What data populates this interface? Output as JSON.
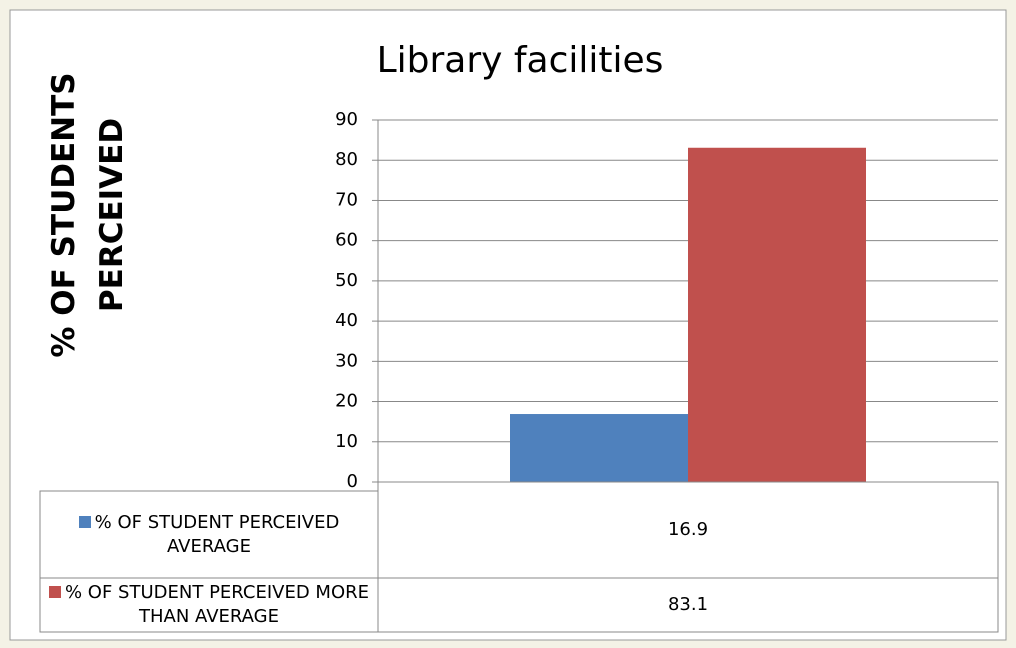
{
  "chart_data": {
    "type": "bar",
    "title": "Library facilities",
    "ylabel": "% OF STUDENTS PERCEIVED",
    "categories": [
      null
    ],
    "series": [
      {
        "name": "% OF STUDENT PERCEIVED AVERAGE",
        "color": "#4f81bd",
        "values": [
          16.9
        ]
      },
      {
        "name": "% OF STUDENT PERCEIVED MORE THAN AVERAGE",
        "color": "#c0504d",
        "values": [
          83.1
        ]
      }
    ],
    "ylim": [
      0,
      90
    ],
    "yticks": [
      0,
      10,
      20,
      30,
      40,
      50,
      60,
      70,
      80,
      90
    ],
    "grid": true,
    "data_table": true
  }
}
